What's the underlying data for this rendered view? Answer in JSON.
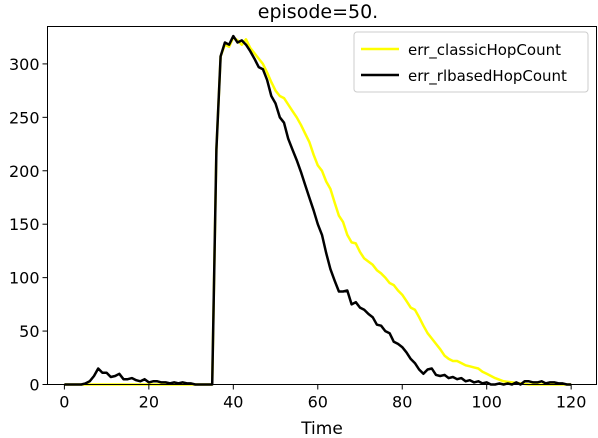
{
  "chart_data": {
    "type": "line",
    "title": "episode=50.",
    "xlabel": "Time",
    "ylabel": "",
    "xlim": [
      -4,
      126
    ],
    "ylim": [
      0,
      335
    ],
    "xticks": [
      0,
      20,
      40,
      60,
      80,
      100,
      120
    ],
    "yticks": [
      0,
      50,
      100,
      150,
      200,
      250,
      300
    ],
    "grid": false,
    "legend_position": "top-right",
    "series": [
      {
        "name": "err_classicHopCount",
        "color": "#ffff00",
        "x": [
          0,
          2,
          4,
          6,
          8,
          10,
          12,
          14,
          16,
          18,
          20,
          22,
          24,
          26,
          28,
          30,
          32,
          34,
          35,
          36,
          37,
          38,
          39,
          40,
          41,
          42,
          43,
          44,
          45,
          46,
          47,
          48,
          49,
          50,
          51,
          52,
          53,
          54,
          55,
          56,
          57,
          58,
          59,
          60,
          61,
          62,
          63,
          64,
          65,
          66,
          67,
          68,
          69,
          70,
          71,
          72,
          73,
          74,
          75,
          76,
          77,
          78,
          79,
          80,
          81,
          82,
          83,
          84,
          85,
          86,
          87,
          88,
          89,
          90,
          91,
          92,
          93,
          94,
          95,
          96,
          97,
          98,
          99,
          100,
          102,
          104,
          106,
          108,
          110,
          112,
          114,
          116,
          118,
          120
        ],
        "values": [
          0,
          0,
          0,
          0,
          0,
          0,
          0,
          0,
          0,
          0,
          0,
          0,
          0,
          0,
          0,
          0,
          0,
          0,
          0,
          220,
          307,
          318,
          316,
          325,
          322,
          318,
          323,
          315,
          310,
          305,
          300,
          292,
          283,
          275,
          270,
          268,
          262,
          256,
          250,
          243,
          235,
          227,
          215,
          205,
          200,
          190,
          183,
          170,
          158,
          152,
          140,
          133,
          132,
          124,
          118,
          115,
          112,
          107,
          104,
          100,
          95,
          93,
          88,
          84,
          78,
          72,
          70,
          63,
          55,
          48,
          43,
          38,
          33,
          27,
          24,
          22,
          22,
          20,
          18,
          17,
          16,
          15,
          12,
          10,
          6,
          3,
          2,
          1,
          0,
          0,
          0,
          0,
          0,
          0
        ]
      },
      {
        "name": "err_rlbasedHopCount",
        "color": "#000000",
        "x": [
          0,
          2,
          4,
          5,
          6,
          7,
          8,
          9,
          10,
          11,
          12,
          13,
          14,
          15,
          16,
          17,
          18,
          19,
          20,
          21,
          22,
          23,
          24,
          25,
          26,
          27,
          28,
          29,
          30,
          31,
          32,
          33,
          34,
          35,
          36,
          37,
          38,
          39,
          40,
          41,
          42,
          43,
          44,
          45,
          46,
          47,
          48,
          49,
          50,
          51,
          52,
          53,
          54,
          55,
          56,
          57,
          58,
          59,
          60,
          61,
          62,
          63,
          64,
          65,
          66,
          67,
          68,
          69,
          70,
          71,
          72,
          73,
          74,
          75,
          76,
          77,
          78,
          79,
          80,
          81,
          82,
          83,
          84,
          85,
          86,
          87,
          88,
          89,
          90,
          91,
          92,
          93,
          94,
          95,
          96,
          97,
          98,
          99,
          100,
          101,
          102,
          103,
          104,
          105,
          106,
          107,
          108,
          109,
          110,
          111,
          112,
          113,
          114,
          115,
          116,
          117,
          118,
          119,
          120
        ],
        "values": [
          0,
          0,
          0,
          1,
          3,
          8,
          15,
          11,
          11,
          7,
          8,
          10,
          5,
          5,
          6,
          4,
          3,
          5,
          2,
          3,
          3,
          2,
          2,
          1,
          2,
          1,
          2,
          1,
          1,
          0,
          0,
          0,
          0,
          0,
          220,
          307,
          320,
          318,
          326,
          320,
          322,
          318,
          312,
          305,
          297,
          295,
          285,
          270,
          263,
          250,
          245,
          230,
          220,
          210,
          199,
          187,
          175,
          163,
          150,
          140,
          123,
          108,
          97,
          87,
          87,
          88,
          75,
          77,
          72,
          70,
          66,
          63,
          56,
          55,
          50,
          48,
          40,
          38,
          35,
          30,
          24,
          20,
          14,
          10,
          14,
          15,
          9,
          8,
          9,
          6,
          7,
          5,
          6,
          3,
          4,
          2,
          3,
          1,
          2,
          0,
          0,
          1,
          0,
          1,
          0,
          2,
          0,
          3,
          3,
          2,
          2,
          3,
          1,
          2,
          2,
          1,
          1,
          0,
          0
        ]
      }
    ]
  }
}
